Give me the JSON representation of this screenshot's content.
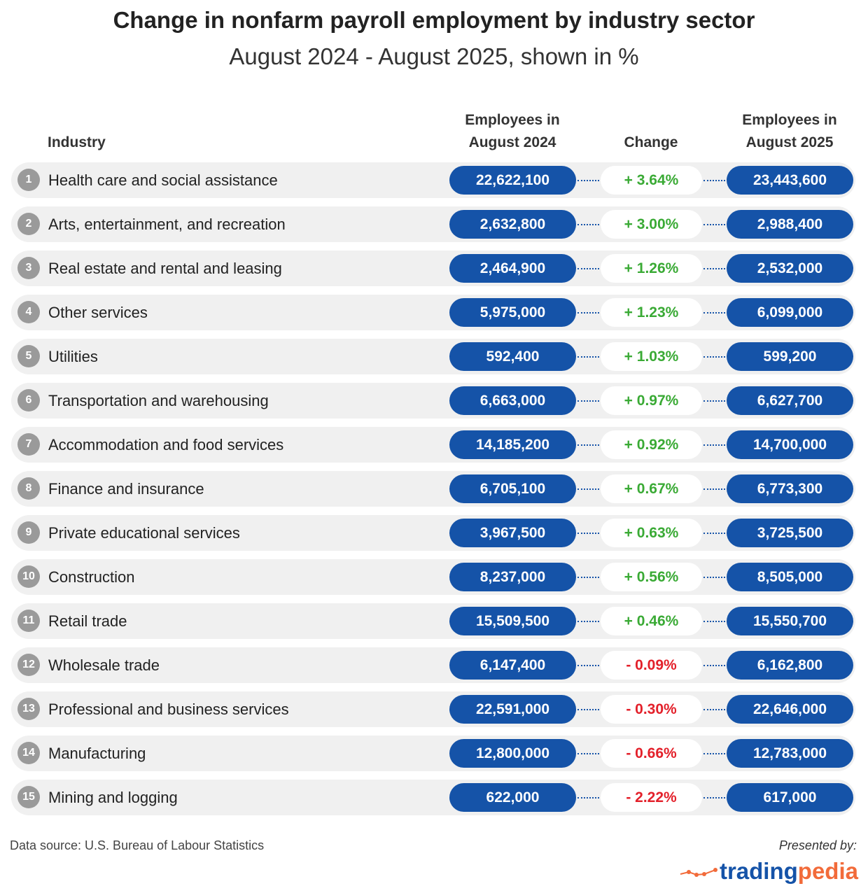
{
  "chart_data": {
    "type": "table",
    "title": "Change in nonfarm payroll employment by industry sector",
    "subtitle": "August 2024 - August 2025, shown in %",
    "columns": [
      "Industry",
      "Employees in August 2024",
      "Change",
      "Employees in August 2025"
    ],
    "rows": [
      {
        "rank": "1",
        "industry": "Health care and social assistance",
        "aug2024": "22,622,100",
        "change": "+ 3.64%",
        "aug2025": "23,443,600",
        "positive": true
      },
      {
        "rank": "2",
        "industry": "Arts, entertainment, and recreation",
        "aug2024": "2,632,800",
        "change": "+ 3.00%",
        "aug2025": "2,988,400",
        "positive": true
      },
      {
        "rank": "3",
        "industry": "Real estate and rental and leasing",
        "aug2024": "2,464,900",
        "change": "+ 1.26%",
        "aug2025": "2,532,000",
        "positive": true
      },
      {
        "rank": "4",
        "industry": "Other services",
        "aug2024": "5,975,000",
        "change": "+ 1.23%",
        "aug2025": "6,099,000",
        "positive": true
      },
      {
        "rank": "5",
        "industry": "Utilities",
        "aug2024": "592,400",
        "change": "+ 1.03%",
        "aug2025": "599,200",
        "positive": true
      },
      {
        "rank": "6",
        "industry": "Transportation and warehousing",
        "aug2024": "6,663,000",
        "change": "+ 0.97%",
        "aug2025": "6,627,700",
        "positive": true
      },
      {
        "rank": "7",
        "industry": "Accommodation and food services",
        "aug2024": "14,185,200",
        "change": "+ 0.92%",
        "aug2025": "14,700,000",
        "positive": true
      },
      {
        "rank": "8",
        "industry": "Finance and insurance",
        "aug2024": "6,705,100",
        "change": "+ 0.67%",
        "aug2025": "6,773,300",
        "positive": true
      },
      {
        "rank": "9",
        "industry": "Private educational services",
        "aug2024": "3,967,500",
        "change": "+ 0.63%",
        "aug2025": "3,725,500",
        "positive": true
      },
      {
        "rank": "10",
        "industry": "Construction",
        "aug2024": "8,237,000",
        "change": "+ 0.56%",
        "aug2025": "8,505,000",
        "positive": true
      },
      {
        "rank": "11",
        "industry": "Retail trade",
        "aug2024": "15,509,500",
        "change": "+ 0.46%",
        "aug2025": "15,550,700",
        "positive": true
      },
      {
        "rank": "12",
        "industry": "Wholesale trade",
        "aug2024": "6,147,400",
        "change": "- 0.09%",
        "aug2025": "6,162,800",
        "positive": false
      },
      {
        "rank": "13",
        "industry": "Professional and business services",
        "aug2024": "22,591,000",
        "change": "- 0.30%",
        "aug2025": "22,646,000",
        "positive": false
      },
      {
        "rank": "14",
        "industry": "Manufacturing",
        "aug2024": "12,800,000",
        "change": "- 0.66%",
        "aug2025": "12,783,000",
        "positive": false
      },
      {
        "rank": "15",
        "industry": "Mining and logging",
        "aug2024": "622,000",
        "change": "- 2.22%",
        "aug2025": "617,000",
        "positive": false
      }
    ]
  },
  "headers": {
    "industry": "Industry",
    "aug2024_line1": "Employees in",
    "aug2024_line2": "August 2024",
    "change": "Change",
    "aug2025_line1": "Employees in",
    "aug2025_line2": "August 2025"
  },
  "footer": {
    "source": "Data source: U.S. Bureau of Labour Statistics",
    "presented_by": "Presented by:",
    "logo_part1": "trading",
    "logo_part2": "pedia"
  },
  "colors": {
    "pill": "#1553a8",
    "positive": "#3aaa35",
    "negative": "#e3202a",
    "logo_blue": "#1553a8",
    "logo_orange": "#f26b3a"
  }
}
